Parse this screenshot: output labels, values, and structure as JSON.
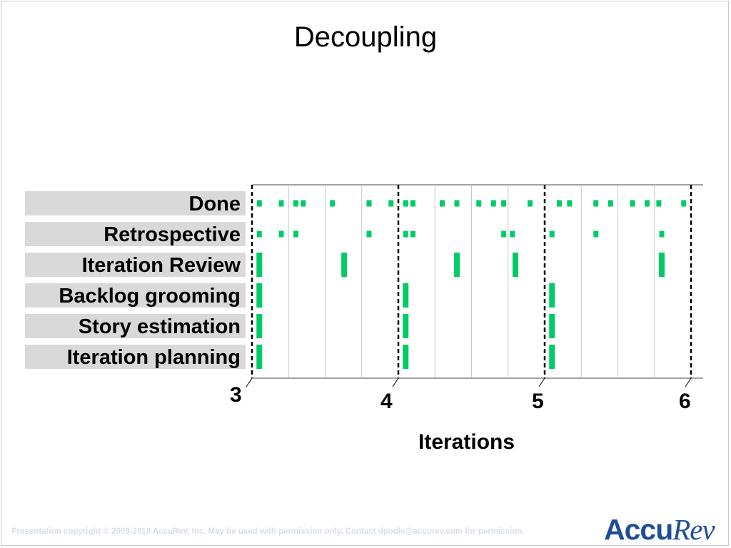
{
  "slide": {
    "title": "Decoupling",
    "footer": "Presentation copyright © 2009-2010 AccuRev, Inc. May be used with permission  only. Contact dpoole@accurev.com for permission.",
    "logo_left": "Accu",
    "logo_right": "Rev"
  },
  "rows": [
    {
      "label": "Done"
    },
    {
      "label": "Retrospective"
    },
    {
      "label": "Iteration Review"
    },
    {
      "label": "Backlog grooming"
    },
    {
      "label": "Story estimation"
    },
    {
      "label": "Iteration planning"
    }
  ],
  "axis": {
    "ticks": [
      "3",
      "4",
      "5",
      "6"
    ],
    "xlabel": "Iterations"
  },
  "colors": {
    "mark": "#00cc66",
    "label_bg": "#d9d9d9",
    "logo": "#1f4e96"
  },
  "chart_data": {
    "type": "scatter",
    "x_unit": "iteration",
    "xlim": [
      3,
      6
    ],
    "events": {
      "Done": [
        3.05,
        3.2,
        3.3,
        3.35,
        3.55,
        3.8,
        3.95,
        4.05,
        4.1,
        4.3,
        4.4,
        4.55,
        4.65,
        4.72,
        4.9,
        5.1,
        5.17,
        5.35,
        5.45,
        5.6,
        5.7,
        5.78,
        5.95
      ],
      "Retrospective": [
        3.05,
        3.2,
        3.3,
        3.8,
        4.05,
        4.1,
        4.72,
        4.78,
        5.05,
        5.35,
        5.8
      ],
      "Iteration Review": [
        3.05,
        3.63,
        4.4,
        4.8,
        5.8
      ],
      "Backlog grooming": [
        3.05,
        4.05,
        5.05
      ],
      "Story estimation": [
        3.05,
        4.05,
        5.05
      ],
      "Iteration planning": [
        3.05,
        4.05,
        5.05
      ]
    }
  }
}
